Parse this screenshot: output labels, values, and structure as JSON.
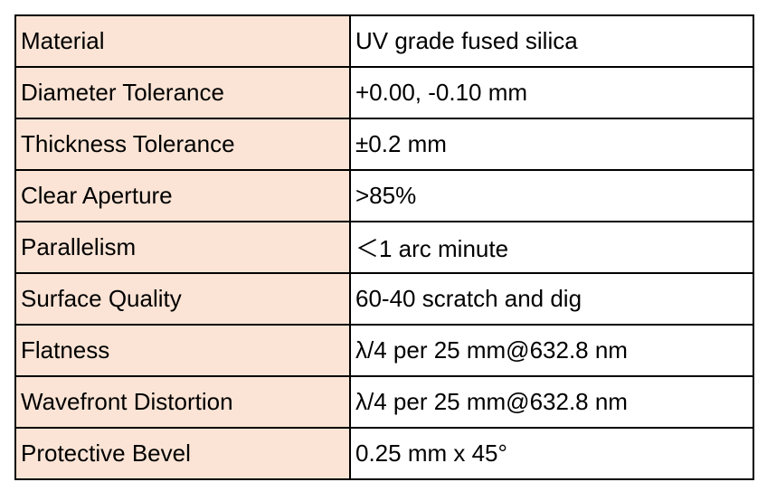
{
  "colors": {
    "label_background": "#fbe4d5",
    "value_background": "#ffffff",
    "border": "#000000"
  },
  "rows": [
    {
      "label": "Material",
      "value": "UV grade fused silica"
    },
    {
      "label": "Diameter Tolerance",
      "value": "+0.00, -0.10 mm"
    },
    {
      "label": "Thickness Tolerance",
      "value": "±0.2 mm"
    },
    {
      "label": "Clear Aperture",
      "value": ">85%"
    },
    {
      "label": "Parallelism",
      "value": "＜1 arc minute"
    },
    {
      "label": "Surface Quality",
      "value": "60-40 scratch and dig"
    },
    {
      "label": "Flatness",
      "value": "λ/4 per 25 mm@632.8 nm"
    },
    {
      "label": "Wavefront Distortion",
      "value": "λ/4 per 25 mm@632.8 nm"
    },
    {
      "label": "Protective Bevel",
      "value": "0.25 mm x 45°"
    }
  ]
}
